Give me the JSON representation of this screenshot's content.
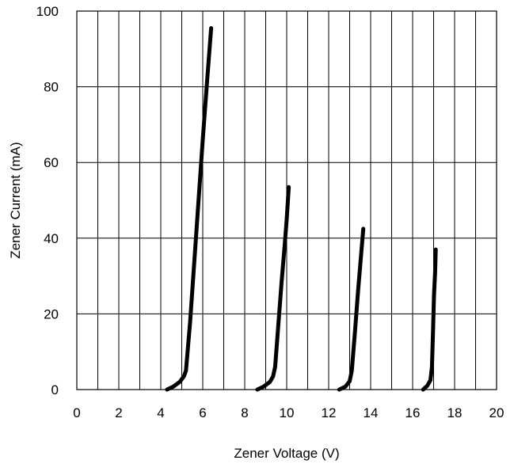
{
  "chart_data": {
    "type": "line",
    "title": "",
    "xlabel": "Zener Voltage (V)",
    "ylabel": "Zener Current (mA)",
    "xlim": [
      0,
      20
    ],
    "ylim": [
      0,
      100
    ],
    "x_ticks": [
      0,
      2,
      4,
      6,
      8,
      10,
      12,
      14,
      16,
      18,
      20
    ],
    "y_ticks": [
      0,
      20,
      40,
      60,
      80,
      100
    ],
    "x_grid_step": 1,
    "y_grid_step": 20,
    "grid": true,
    "legend": "none",
    "line_color": "#000000",
    "series": [
      {
        "points": [
          [
            4.3,
            0
          ],
          [
            4.6,
            0.8
          ],
          [
            4.9,
            2
          ],
          [
            5.1,
            3.5
          ],
          [
            5.2,
            5
          ],
          [
            5.4,
            18
          ],
          [
            5.6,
            34
          ],
          [
            5.8,
            50
          ],
          [
            6.0,
            66
          ],
          [
            6.2,
            81
          ],
          [
            6.4,
            95.5
          ]
        ]
      },
      {
        "points": [
          [
            8.6,
            0
          ],
          [
            8.9,
            0.8
          ],
          [
            9.2,
            2
          ],
          [
            9.35,
            3.5
          ],
          [
            9.45,
            6
          ],
          [
            9.6,
            17
          ],
          [
            9.75,
            28
          ],
          [
            9.9,
            38
          ],
          [
            10.0,
            45
          ],
          [
            10.1,
            53.5
          ]
        ]
      },
      {
        "points": [
          [
            12.5,
            0
          ],
          [
            12.8,
            0.8
          ],
          [
            13.0,
            2.2
          ],
          [
            13.1,
            5
          ],
          [
            13.25,
            15
          ],
          [
            13.4,
            26
          ],
          [
            13.55,
            36
          ],
          [
            13.65,
            42.5
          ]
        ]
      },
      {
        "points": [
          [
            16.5,
            0
          ],
          [
            16.7,
            1
          ],
          [
            16.85,
            2.5
          ],
          [
            16.92,
            6
          ],
          [
            16.97,
            15
          ],
          [
            17.02,
            25
          ],
          [
            17.07,
            31
          ],
          [
            17.1,
            37
          ]
        ]
      }
    ]
  }
}
